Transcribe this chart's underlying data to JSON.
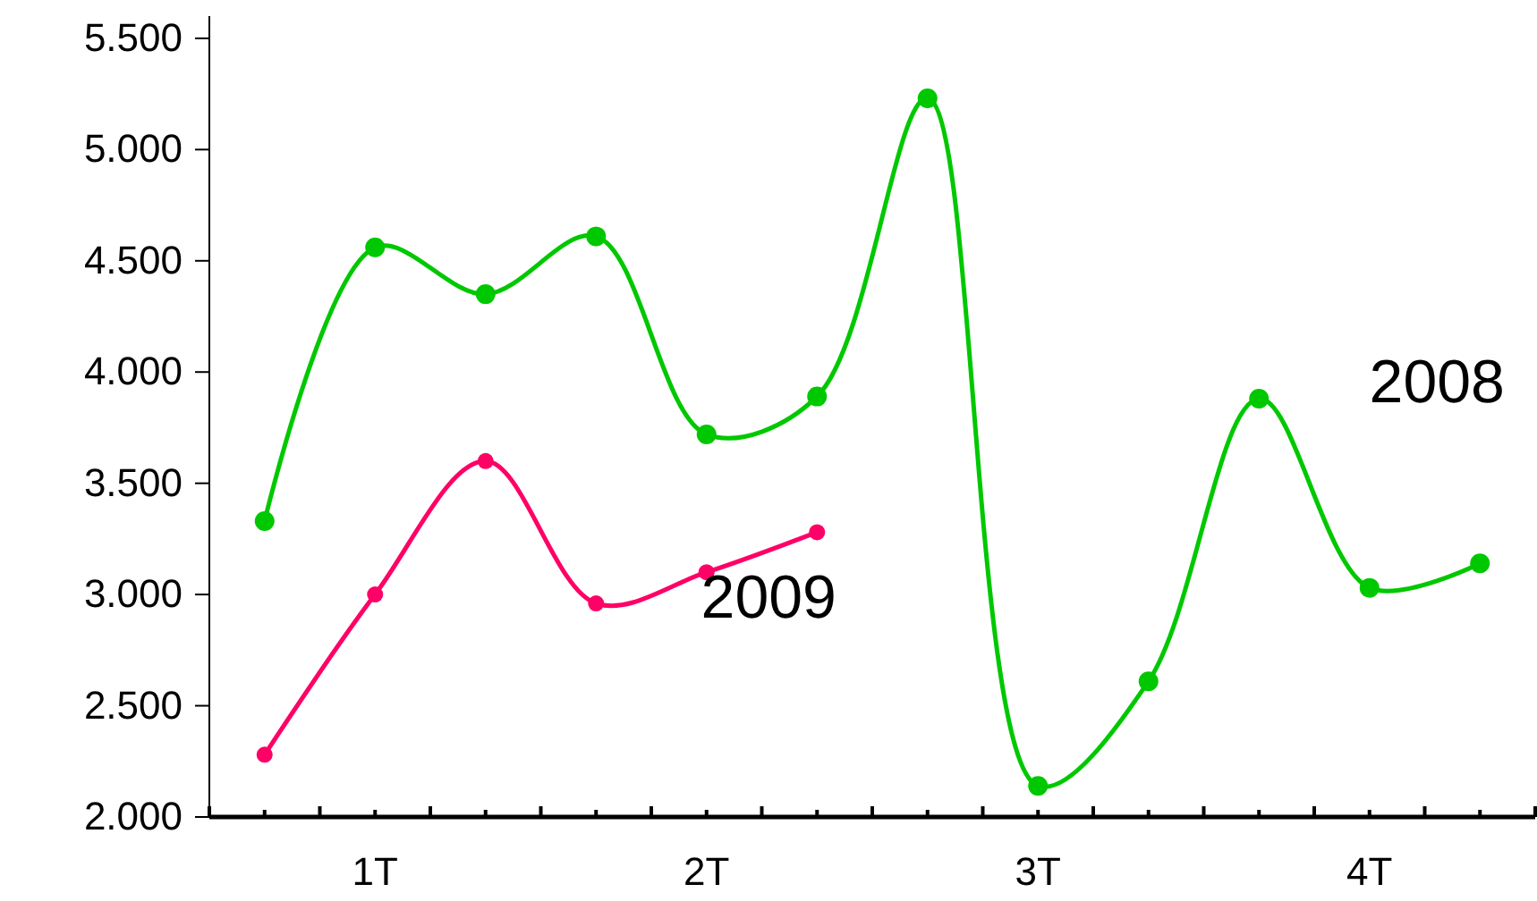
{
  "chart_data": {
    "type": "line",
    "categories": [
      null,
      "1T",
      null,
      null,
      "2T",
      null,
      null,
      "3T",
      null,
      null,
      "4T",
      null
    ],
    "series": [
      {
        "name": "2008",
        "color": "#00c800",
        "values": [
          3330,
          4560,
          4350,
          4610,
          3720,
          3890,
          5230,
          2140,
          2610,
          3880,
          3030,
          3140
        ]
      },
      {
        "name": "2009",
        "color": "#ff0066",
        "values": [
          2280,
          3000,
          3600,
          2960,
          3100,
          3280,
          null,
          null,
          null,
          null,
          null,
          null
        ]
      }
    ],
    "ylim": [
      2000,
      5600
    ],
    "yticks": [
      {
        "value": 2000,
        "label": "2.000"
      },
      {
        "value": 2500,
        "label": "2.500"
      },
      {
        "value": 3000,
        "label": "3.000"
      },
      {
        "value": 3500,
        "label": "3.500"
      },
      {
        "value": 4000,
        "label": "4.000"
      },
      {
        "value": 4500,
        "label": "4.500"
      },
      {
        "value": 5000,
        "label": "5.000"
      },
      {
        "value": 5500,
        "label": "5.500"
      }
    ],
    "grid": false,
    "marker": "circle",
    "line_style": "solid"
  }
}
